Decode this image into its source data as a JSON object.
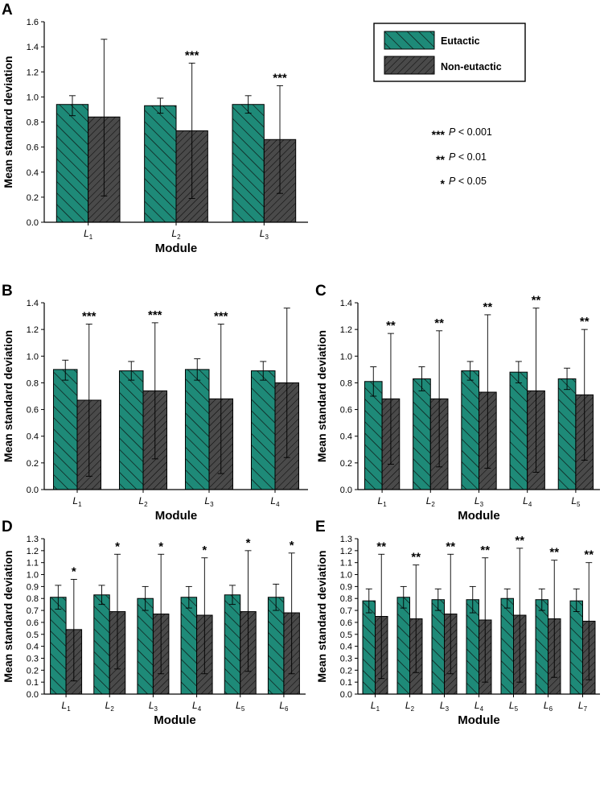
{
  "colors": {
    "eutactic": "#1e8a78",
    "non_eutactic": "#4a4a4a",
    "hatch": "#0b0b0b",
    "axis": "#000000"
  },
  "legend": {
    "items": [
      {
        "label": "Eutactic",
        "color": "#1e8a78"
      },
      {
        "label": "Non-eutactic",
        "color": "#4a4a4a"
      }
    ]
  },
  "significance_key": [
    {
      "stars": "***",
      "p_symbol": "P",
      "text": " < 0.001"
    },
    {
      "stars": "**",
      "p_symbol": "P",
      "text": " < 0.01"
    },
    {
      "stars": "*",
      "p_symbol": "P",
      "text": " < 0.05"
    }
  ],
  "chart_data": [
    {
      "panel": "A",
      "type": "bar",
      "xlabel": "Module",
      "ylabel": "Mean standard deviation",
      "ylim": [
        0,
        1.6
      ],
      "yticks": [
        "0.0",
        "0.2",
        "0.4",
        "0.6",
        "0.8",
        "1.0",
        "1.2",
        "1.4",
        "1.6"
      ],
      "categories": [
        {
          "base": "L",
          "sub": "1"
        },
        {
          "base": "L",
          "sub": "2"
        },
        {
          "base": "L",
          "sub": "3"
        }
      ],
      "series": [
        {
          "name": "Eutactic",
          "values": [
            0.94,
            0.93,
            0.94
          ],
          "err_upper": [
            1.01,
            0.99,
            1.01
          ],
          "err_lower": [
            0.85,
            0.87,
            0.87
          ]
        },
        {
          "name": "Non-eutactic",
          "values": [
            0.84,
            0.73,
            0.66
          ],
          "err_upper": [
            1.46,
            1.27,
            1.09
          ],
          "err_lower": [
            0.21,
            0.19,
            0.23
          ]
        }
      ],
      "annotations": [
        "",
        "***",
        "***"
      ]
    },
    {
      "panel": "B",
      "type": "bar",
      "xlabel": "Module",
      "ylabel": "Mean standard deviation",
      "ylim": [
        0,
        1.4
      ],
      "yticks": [
        "0.0",
        "0.2",
        "0.4",
        "0.6",
        "0.8",
        "1.0",
        "1.2",
        "1.4"
      ],
      "categories": [
        {
          "base": "L",
          "sub": "1"
        },
        {
          "base": "L",
          "sub": "2"
        },
        {
          "base": "L",
          "sub": "3"
        },
        {
          "base": "L",
          "sub": "4"
        }
      ],
      "series": [
        {
          "name": "Eutactic",
          "values": [
            0.9,
            0.89,
            0.9,
            0.89
          ],
          "err_upper": [
            0.97,
            0.96,
            0.98,
            0.96
          ],
          "err_lower": [
            0.82,
            0.82,
            0.82,
            0.82
          ]
        },
        {
          "name": "Non-eutactic",
          "values": [
            0.67,
            0.74,
            0.68,
            0.8
          ],
          "err_upper": [
            1.24,
            1.25,
            1.24,
            1.36
          ],
          "err_lower": [
            0.1,
            0.23,
            0.12,
            0.24
          ]
        }
      ],
      "annotations": [
        "***",
        "***",
        "***",
        ""
      ]
    },
    {
      "panel": "C",
      "type": "bar",
      "xlabel": "Module",
      "ylabel": "Mean standard deviation",
      "ylim": [
        0,
        1.4
      ],
      "yticks": [
        "0.0",
        "0.2",
        "0.4",
        "0.6",
        "0.8",
        "1.0",
        "1.2",
        "1.4"
      ],
      "categories": [
        {
          "base": "L",
          "sub": "1"
        },
        {
          "base": "L",
          "sub": "2"
        },
        {
          "base": "L",
          "sub": "3"
        },
        {
          "base": "L",
          "sub": "4"
        },
        {
          "base": "L",
          "sub": "5"
        }
      ],
      "series": [
        {
          "name": "Eutactic",
          "values": [
            0.81,
            0.83,
            0.89,
            0.88,
            0.83
          ],
          "err_upper": [
            0.92,
            0.92,
            0.96,
            0.96,
            0.91
          ],
          "err_lower": [
            0.7,
            0.74,
            0.82,
            0.8,
            0.75
          ]
        },
        {
          "name": "Non-eutactic",
          "values": [
            0.68,
            0.68,
            0.73,
            0.74,
            0.71
          ],
          "err_upper": [
            1.17,
            1.19,
            1.31,
            1.36,
            1.2
          ],
          "err_lower": [
            0.19,
            0.17,
            0.16,
            0.13,
            0.22
          ]
        }
      ],
      "annotations": [
        "**",
        "**",
        "**",
        "**",
        "**"
      ]
    },
    {
      "panel": "D",
      "type": "bar",
      "xlabel": "Module",
      "ylabel": "Mean standard deviation",
      "ylim": [
        0,
        1.3
      ],
      "yticks": [
        "0.0",
        "0.1",
        "0.2",
        "0.3",
        "0.4",
        "0.5",
        "0.6",
        "0.7",
        "0.8",
        "0.9",
        "1.0",
        "1.1",
        "1.2",
        "1.3"
      ],
      "categories": [
        {
          "base": "L",
          "sub": "1"
        },
        {
          "base": "L",
          "sub": "2"
        },
        {
          "base": "L",
          "sub": "3"
        },
        {
          "base": "L",
          "sub": "4"
        },
        {
          "base": "L",
          "sub": "5"
        },
        {
          "base": "L",
          "sub": "6"
        }
      ],
      "series": [
        {
          "name": "Eutactic",
          "values": [
            0.81,
            0.83,
            0.8,
            0.81,
            0.83,
            0.81
          ],
          "err_upper": [
            0.91,
            0.91,
            0.9,
            0.9,
            0.91,
            0.92
          ],
          "err_lower": [
            0.71,
            0.75,
            0.7,
            0.72,
            0.75,
            0.7
          ]
        },
        {
          "name": "Non-eutactic",
          "values": [
            0.54,
            0.69,
            0.67,
            0.66,
            0.69,
            0.68
          ],
          "err_upper": [
            0.96,
            1.17,
            1.17,
            1.14,
            1.2,
            1.18
          ],
          "err_lower": [
            0.11,
            0.21,
            0.17,
            0.17,
            0.19,
            0.17
          ]
        }
      ],
      "annotations": [
        "*",
        "*",
        "*",
        "*",
        "*",
        "*"
      ]
    },
    {
      "panel": "E",
      "type": "bar",
      "xlabel": "Module",
      "ylabel": "Mean standard deviation",
      "ylim": [
        0,
        1.3
      ],
      "yticks": [
        "0.0",
        "0.1",
        "0.2",
        "0.3",
        "0.4",
        "0.5",
        "0.6",
        "0.7",
        "0.8",
        "0.9",
        "1.0",
        "1.1",
        "1.2",
        "1.3"
      ],
      "categories": [
        {
          "base": "L",
          "sub": "1"
        },
        {
          "base": "L",
          "sub": "2"
        },
        {
          "base": "L",
          "sub": "3"
        },
        {
          "base": "L",
          "sub": "4"
        },
        {
          "base": "L",
          "sub": "5"
        },
        {
          "base": "L",
          "sub": "6"
        },
        {
          "base": "L",
          "sub": "7"
        }
      ],
      "series": [
        {
          "name": "Eutactic",
          "values": [
            0.78,
            0.81,
            0.79,
            0.79,
            0.8,
            0.79,
            0.78
          ],
          "err_upper": [
            0.88,
            0.9,
            0.88,
            0.9,
            0.88,
            0.88,
            0.88
          ],
          "err_lower": [
            0.68,
            0.72,
            0.7,
            0.68,
            0.72,
            0.7,
            0.69
          ]
        },
        {
          "name": "Non-eutactic",
          "values": [
            0.65,
            0.63,
            0.67,
            0.62,
            0.66,
            0.63,
            0.61
          ],
          "err_upper": [
            1.17,
            1.08,
            1.17,
            1.14,
            1.22,
            1.12,
            1.1
          ],
          "err_lower": [
            0.13,
            0.18,
            0.17,
            0.1,
            0.1,
            0.14,
            0.12
          ]
        }
      ],
      "annotations": [
        "**",
        "**",
        "**",
        "**",
        "**",
        "**",
        "**"
      ]
    }
  ]
}
